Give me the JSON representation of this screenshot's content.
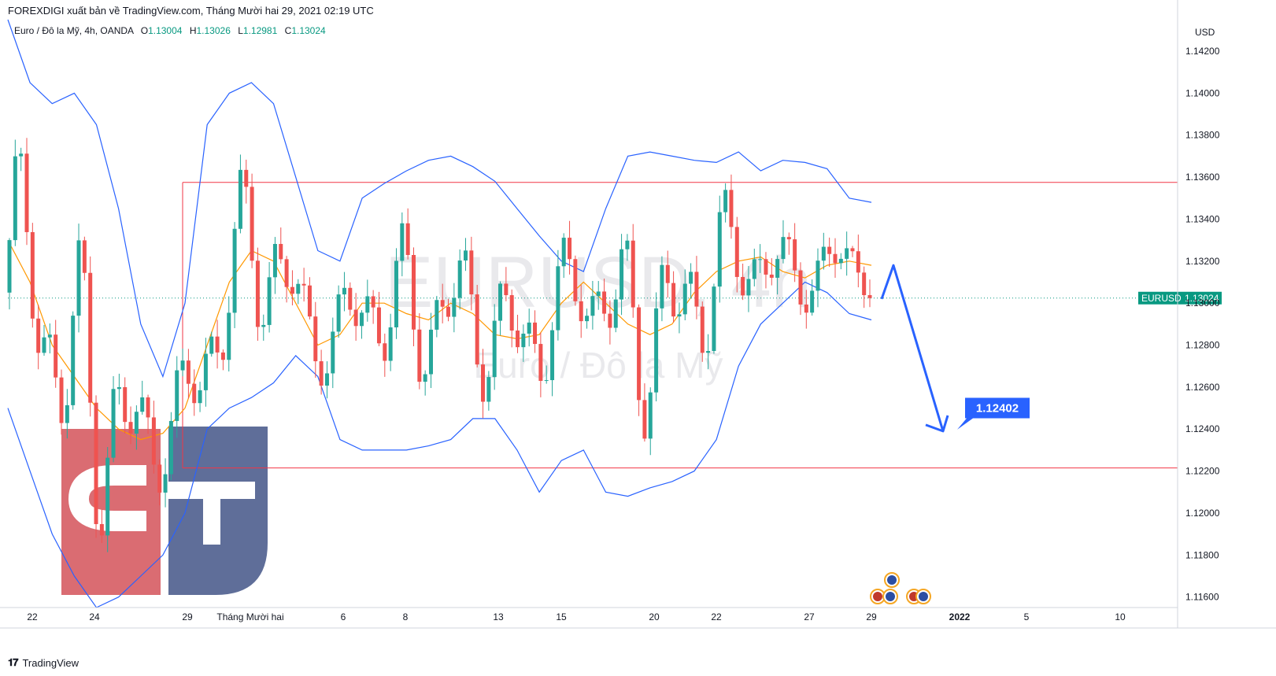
{
  "header": {
    "published_by": "FOREXDIGI xuất bản về TradingView.com, Tháng Mười hai 29, 2021 02:19 UTC"
  },
  "legend": {
    "symbol": "Euro / Đô la Mỹ, 4h, OANDA",
    "o_label": "O",
    "o_value": "1.13004",
    "h_label": "H",
    "h_value": "1.13026",
    "l_label": "L",
    "l_value": "1.12981",
    "c_label": "C",
    "c_value": "1.13024"
  },
  "watermark": {
    "line1": "EURUSD, 4h",
    "line2": "Euro / Đô la Mỹ"
  },
  "footer": {
    "brand_mark": "𝟏𝟕",
    "brand": "TradingView"
  },
  "colors": {
    "up": "#26a69a",
    "down": "#ef5350",
    "band": "#2962ff",
    "ma": "#ff9800",
    "range_line": "#f23645",
    "arrow": "#2962ff",
    "price_tag": "#089981",
    "logo_red": "#d5585f",
    "logo_blue": "#4a5b8c"
  },
  "chart_data": {
    "type": "candlestick",
    "symbol": "EURUSD",
    "timeframe": "4h",
    "currency": "USD",
    "ylim": [
      1.1155,
      1.1435
    ],
    "y_ticks": [
      "1.14200",
      "1.14000",
      "1.13800",
      "1.13600",
      "1.13400",
      "1.13200",
      "1.13000",
      "1.12800",
      "1.12600",
      "1.12400",
      "1.12200",
      "1.12000",
      "1.11800",
      "1.11600"
    ],
    "x_ticks": [
      "22",
      "24",
      "29",
      "Tháng Mười hai",
      "6",
      "8",
      "13",
      "15",
      "20",
      "22",
      "27",
      "29",
      "2022",
      "5",
      "10"
    ],
    "current_price": {
      "label": "EURUSD",
      "value": "1.13024",
      "y": 1.13024
    },
    "range_high": 1.13575,
    "range_low": 1.12215,
    "target_label": "1.12402",
    "arrow_points": [
      [
        1.1302
      ],
      [
        1.1318
      ],
      [
        1.1239
      ]
    ],
    "series": [
      {
        "name": "Bollinger upper",
        "values": [
          1.1435,
          1.1405,
          1.1395,
          1.14,
          1.1385,
          1.1345,
          1.129,
          1.1265,
          1.13,
          1.1385,
          1.14,
          1.1405,
          1.1395,
          1.136,
          1.1325,
          1.132,
          1.135,
          1.1357,
          1.1363,
          1.1368,
          1.137,
          1.1365,
          1.1358,
          1.1345,
          1.1332,
          1.132,
          1.1315,
          1.1345,
          1.137,
          1.1372,
          1.137,
          1.1368,
          1.1367,
          1.1372,
          1.1363,
          1.1368,
          1.1367,
          1.1364,
          1.135,
          1.1348
        ]
      },
      {
        "name": "Bollinger lower",
        "values": [
          1.125,
          1.122,
          1.119,
          1.117,
          1.1155,
          1.116,
          1.117,
          1.118,
          1.12,
          1.124,
          1.125,
          1.1255,
          1.1262,
          1.1275,
          1.1265,
          1.1235,
          1.123,
          1.123,
          1.123,
          1.1232,
          1.1235,
          1.1245,
          1.1245,
          1.123,
          1.121,
          1.1225,
          1.123,
          1.121,
          1.1208,
          1.1212,
          1.1215,
          1.122,
          1.1235,
          1.127,
          1.129,
          1.13,
          1.131,
          1.1305,
          1.1295,
          1.1292
        ]
      },
      {
        "name": "Moving average",
        "values": [
          1.133,
          1.131,
          1.128,
          1.1265,
          1.125,
          1.124,
          1.1235,
          1.1238,
          1.125,
          1.128,
          1.131,
          1.1325,
          1.132,
          1.13,
          1.128,
          1.1285,
          1.13,
          1.13,
          1.1295,
          1.1292,
          1.13,
          1.1295,
          1.1285,
          1.1283,
          1.1285,
          1.13,
          1.131,
          1.13,
          1.129,
          1.1285,
          1.129,
          1.1305,
          1.1315,
          1.132,
          1.1322,
          1.1315,
          1.1312,
          1.1318,
          1.132,
          1.1318
        ]
      }
    ]
  }
}
